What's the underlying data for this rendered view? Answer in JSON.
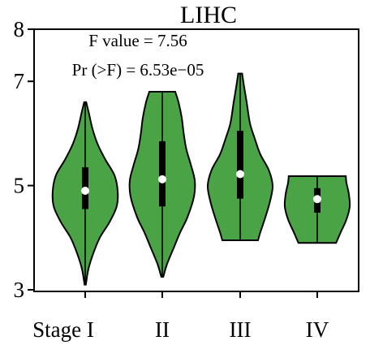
{
  "chart_data": {
    "type": "violin",
    "title": "LIHC",
    "annotations": [
      "F value = 7.56",
      "Pr (>F) = 6.53e−05"
    ],
    "categories": [
      "Stage I",
      "II",
      "III",
      "IV"
    ],
    "yticks": [
      3,
      5,
      7,
      8
    ],
    "ylim": [
      2.95,
      8.0
    ],
    "fill_color": "#4aa345",
    "series": [
      {
        "category": "Stage I",
        "min": 3.1,
        "q1": 4.55,
        "median": 4.9,
        "q3": 5.35,
        "max": 6.6,
        "profile": [
          [
            3.1,
            0.02
          ],
          [
            3.4,
            0.1
          ],
          [
            3.7,
            0.25
          ],
          [
            4.0,
            0.45
          ],
          [
            4.3,
            0.75
          ],
          [
            4.6,
            0.97
          ],
          [
            4.9,
            1.0
          ],
          [
            5.2,
            0.9
          ],
          [
            5.5,
            0.62
          ],
          [
            5.8,
            0.38
          ],
          [
            6.1,
            0.22
          ],
          [
            6.4,
            0.11
          ],
          [
            6.6,
            0.03
          ]
        ]
      },
      {
        "category": "II",
        "min": 3.25,
        "q1": 4.6,
        "median": 5.12,
        "q3": 5.85,
        "max": 6.8,
        "profile": [
          [
            3.25,
            0.03
          ],
          [
            3.5,
            0.15
          ],
          [
            3.8,
            0.35
          ],
          [
            4.1,
            0.55
          ],
          [
            4.4,
            0.78
          ],
          [
            4.8,
            0.98
          ],
          [
            5.1,
            1.0
          ],
          [
            5.4,
            0.88
          ],
          [
            5.7,
            0.74
          ],
          [
            6.0,
            0.66
          ],
          [
            6.3,
            0.6
          ],
          [
            6.6,
            0.5
          ],
          [
            6.8,
            0.4
          ]
        ]
      },
      {
        "category": "III",
        "min": 3.95,
        "q1": 4.75,
        "median": 5.22,
        "q3": 6.05,
        "max": 7.15,
        "profile": [
          [
            3.95,
            0.55
          ],
          [
            4.1,
            0.62
          ],
          [
            4.4,
            0.78
          ],
          [
            4.7,
            0.92
          ],
          [
            5.0,
            1.0
          ],
          [
            5.3,
            0.88
          ],
          [
            5.6,
            0.62
          ],
          [
            5.9,
            0.45
          ],
          [
            6.2,
            0.3
          ],
          [
            6.6,
            0.2
          ],
          [
            6.9,
            0.12
          ],
          [
            7.15,
            0.06
          ]
        ]
      },
      {
        "category": "IV",
        "min": 3.9,
        "q1": 4.48,
        "median": 4.74,
        "q3": 4.95,
        "max": 5.18,
        "profile": [
          [
            3.9,
            0.58
          ],
          [
            4.1,
            0.72
          ],
          [
            4.35,
            0.9
          ],
          [
            4.6,
            1.0
          ],
          [
            4.85,
            0.97
          ],
          [
            5.05,
            0.9
          ],
          [
            5.18,
            0.88
          ]
        ]
      }
    ]
  }
}
